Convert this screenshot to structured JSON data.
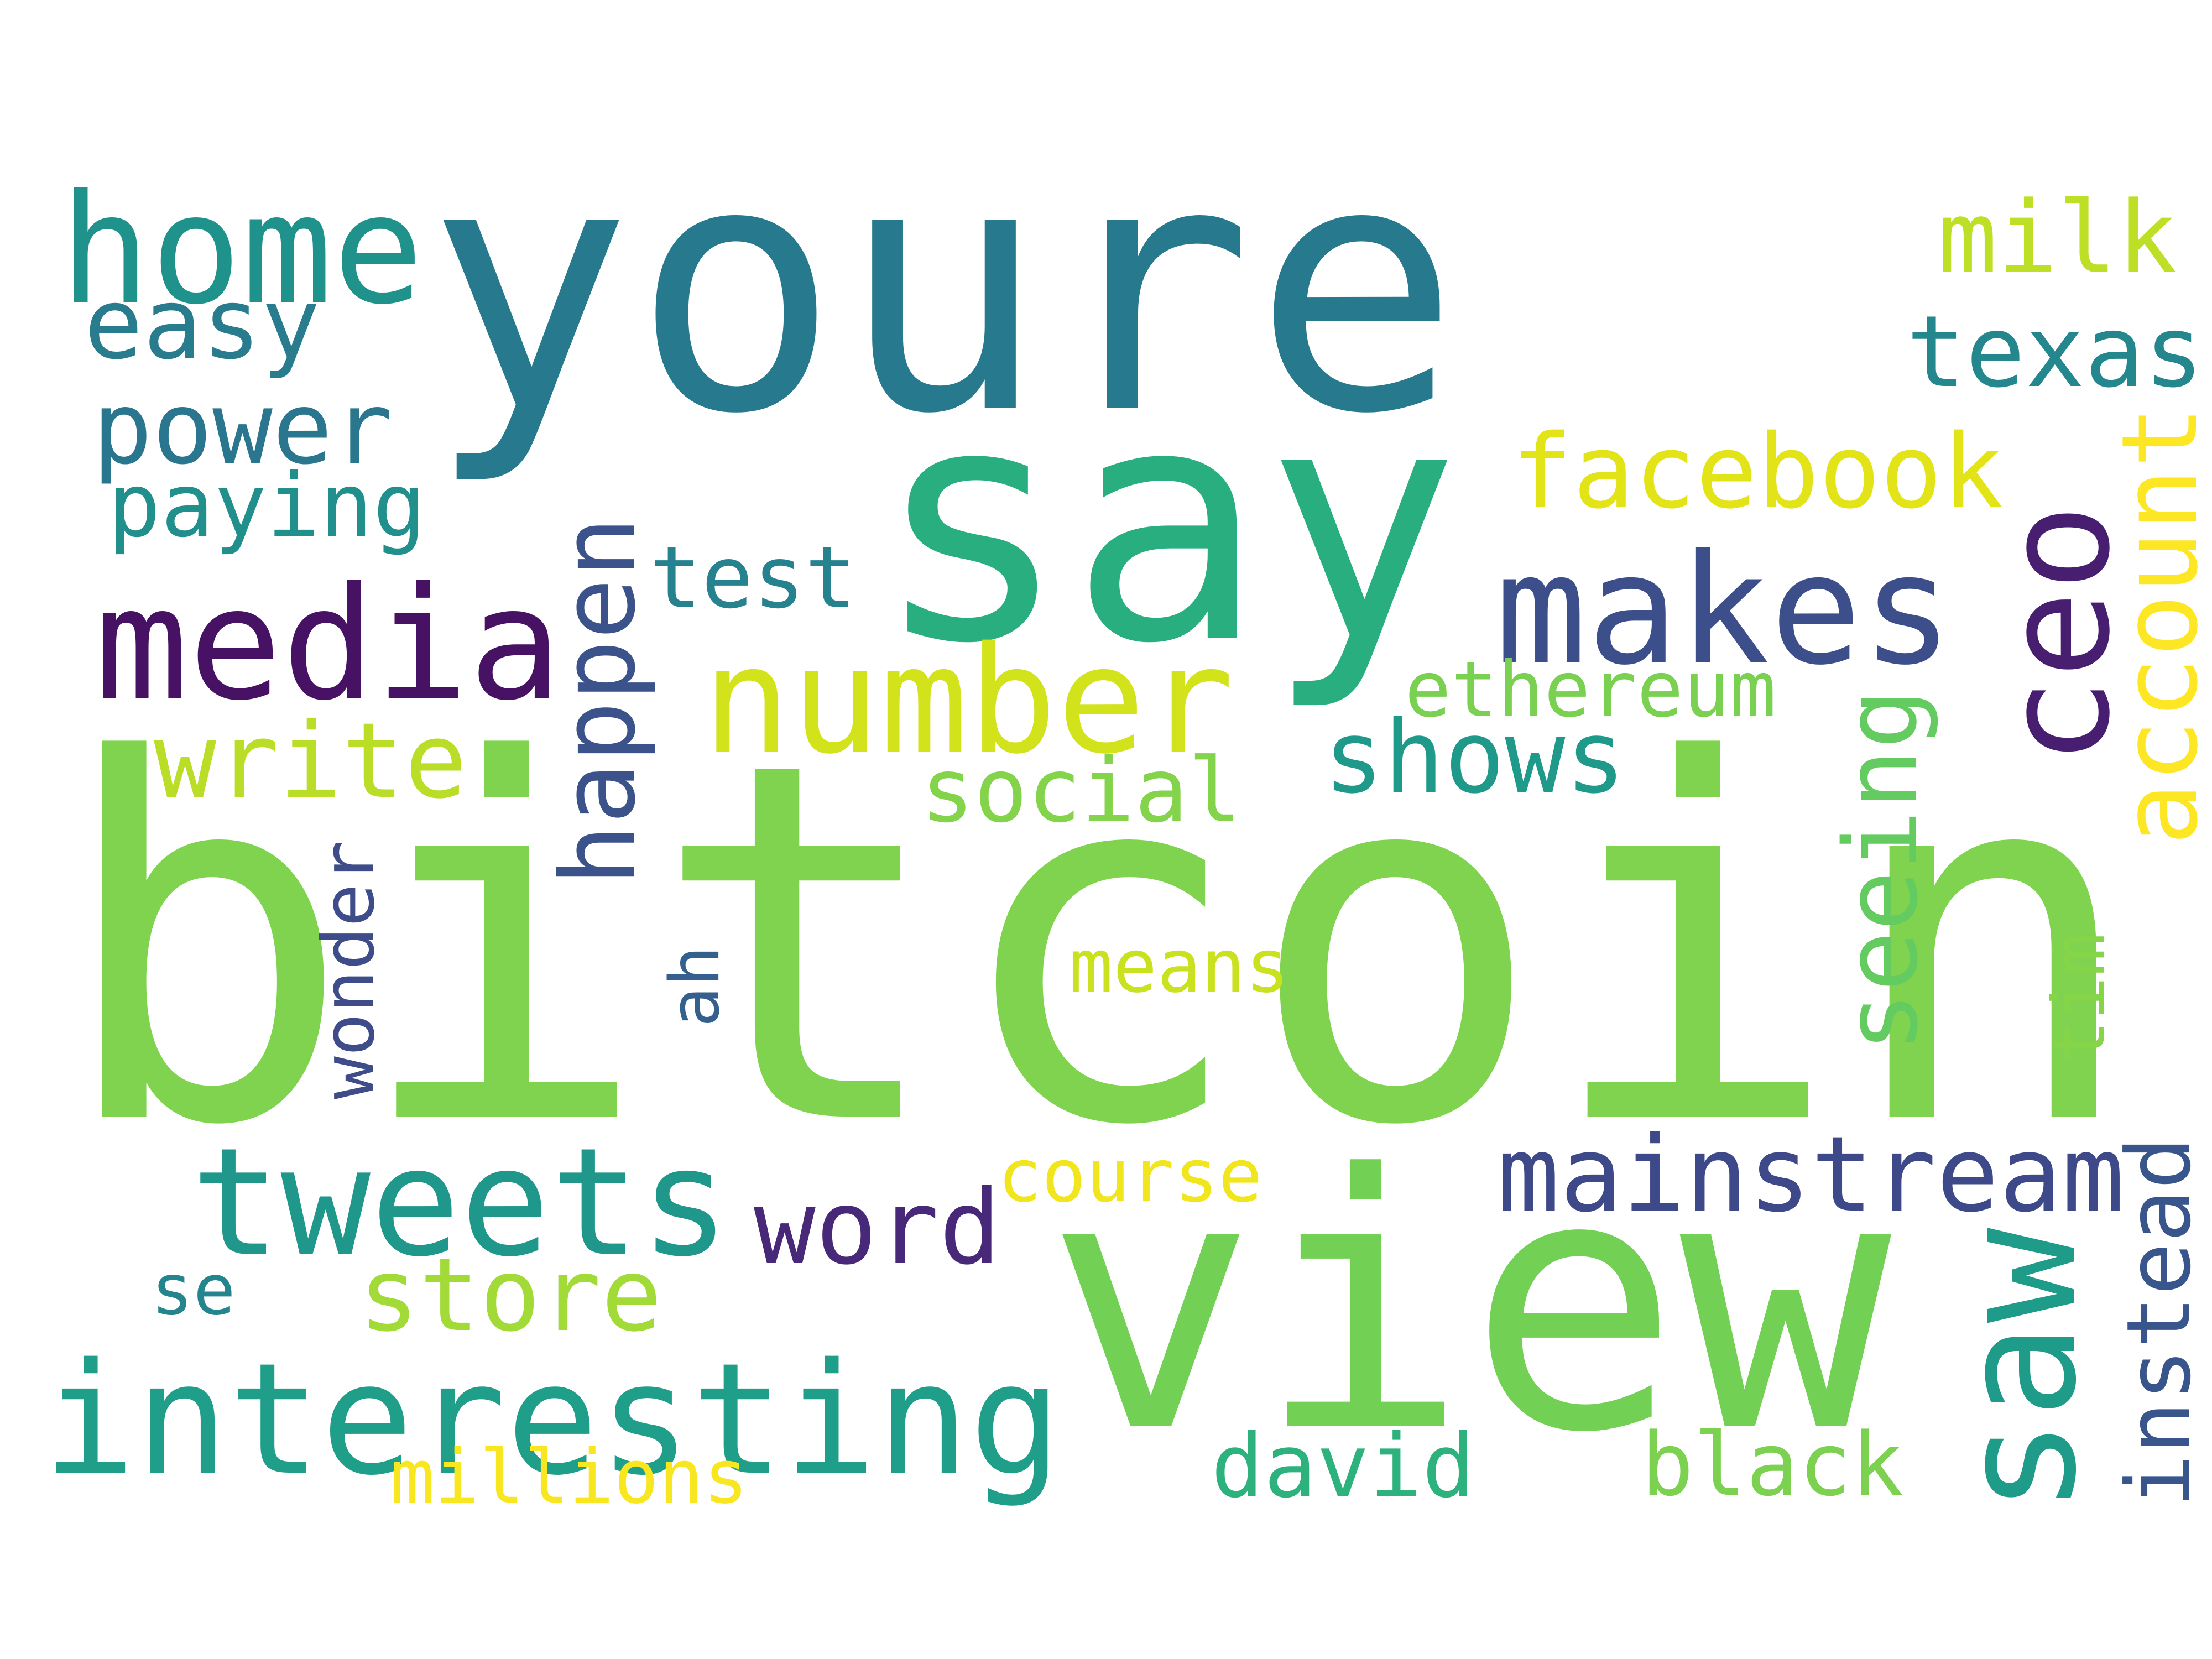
{
  "words": [
    {
      "text": "youre",
      "color": "#277a8e"
    },
    {
      "text": "bitcoin",
      "color": "#7fd34e"
    },
    {
      "text": "say",
      "color": "#29af7f"
    },
    {
      "text": "view",
      "color": "#72d054"
    },
    {
      "text": "home",
      "color": "#20928c"
    },
    {
      "text": "easy",
      "color": "#287c8e"
    },
    {
      "text": "power",
      "color": "#2a768e"
    },
    {
      "text": "paying",
      "color": "#21908d"
    },
    {
      "text": "media",
      "color": "#471164"
    },
    {
      "text": "number",
      "color": "#d2e21b"
    },
    {
      "text": "makes",
      "color": "#3c4f8a"
    },
    {
      "text": "ceo",
      "color": "#481f70"
    },
    {
      "text": "account",
      "color": "#fde725"
    },
    {
      "text": "milk",
      "color": "#bddf26"
    },
    {
      "text": "texas",
      "color": "#24878e"
    },
    {
      "text": "facebook",
      "color": "#e2e418"
    },
    {
      "text": "happen",
      "color": "#3b528b"
    },
    {
      "text": "test",
      "color": "#26828e"
    },
    {
      "text": "ethereum",
      "color": "#7ad151"
    },
    {
      "text": "shows",
      "color": "#1f9a8a"
    },
    {
      "text": "seeing",
      "color": "#63cb5f"
    },
    {
      "text": "write",
      "color": "#bade28"
    },
    {
      "text": "social",
      "color": "#84d44b"
    },
    {
      "text": "ah",
      "color": "#355f8d"
    },
    {
      "text": "wonder",
      "color": "#3e4c8a"
    },
    {
      "text": "means",
      "color": "#cae11f"
    },
    {
      "text": "tim",
      "color": "#86d549"
    },
    {
      "text": "tweets",
      "color": "#1f988b"
    },
    {
      "text": "word",
      "color": "#482878"
    },
    {
      "text": "course",
      "color": "#f1e51d"
    },
    {
      "text": "mainstream",
      "color": "#3e4989"
    },
    {
      "text": "store",
      "color": "#a2da37"
    },
    {
      "text": "se",
      "color": "#25858e"
    },
    {
      "text": "saw",
      "color": "#1e9c89"
    },
    {
      "text": "instead",
      "color": "#39568c"
    },
    {
      "text": "interesting",
      "color": "#1f9e89"
    },
    {
      "text": "david",
      "color": "#2db27d"
    },
    {
      "text": "black",
      "color": "#7cd250"
    },
    {
      "text": "millions",
      "color": "#f8e621"
    }
  ]
}
